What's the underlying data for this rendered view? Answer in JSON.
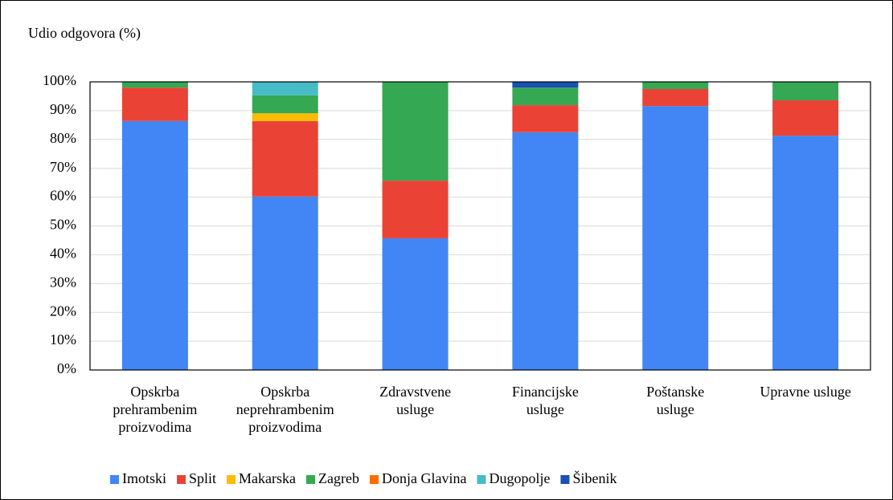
{
  "chart_data": {
    "type": "stacked_bar",
    "y_axis_label": "Udio odgovora (%)",
    "categories": [
      "Opskrba prehrambenim proizvodima",
      "Opskrba neprehrambenim proizvodima",
      "Zdravstvene usluge",
      "Financijske usluge",
      "Poštanske usluge",
      "Upravne usluge"
    ],
    "series": [
      {
        "name": "Imotski",
        "color": "#4285f4",
        "values": [
          86.4,
          60.2,
          45.7,
          82.5,
          91.6,
          81.3
        ]
      },
      {
        "name": "Split",
        "color": "#ea4335",
        "values": [
          11.6,
          26.2,
          20.0,
          9.4,
          5.9,
          12.3
        ]
      },
      {
        "name": "Makarska",
        "color": "#fbbc04",
        "values": [
          0,
          2.7,
          0,
          0,
          0,
          0
        ]
      },
      {
        "name": "Zagreb",
        "color": "#34a853",
        "values": [
          2.0,
          6.2,
          34.3,
          6.1,
          2.5,
          6.4
        ]
      },
      {
        "name": "Donja Glavina",
        "color": "#ff6d01",
        "values": [
          0,
          0,
          0,
          0,
          0,
          0
        ]
      },
      {
        "name": "Dugopolje",
        "color": "#46bdc6",
        "values": [
          0,
          4.7,
          0,
          0,
          0,
          0
        ]
      },
      {
        "name": "Šibenik",
        "color": "#1a4fb3",
        "values": [
          0,
          0,
          0,
          2.0,
          0,
          0
        ]
      }
    ],
    "ylim": [
      0,
      100
    ],
    "yticks": [
      {
        "value": 0,
        "label": "0%"
      },
      {
        "value": 10,
        "label": "10%"
      },
      {
        "value": 20,
        "label": "20%"
      },
      {
        "value": 30,
        "label": "30%"
      },
      {
        "value": 40,
        "label": "40%"
      },
      {
        "value": 50,
        "label": "50%"
      },
      {
        "value": 60,
        "label": "60%"
      },
      {
        "value": 70,
        "label": "70%"
      },
      {
        "value": 80,
        "label": "80%"
      },
      {
        "value": 90,
        "label": "90%"
      },
      {
        "value": 100,
        "label": "100%"
      }
    ],
    "grid": true
  }
}
